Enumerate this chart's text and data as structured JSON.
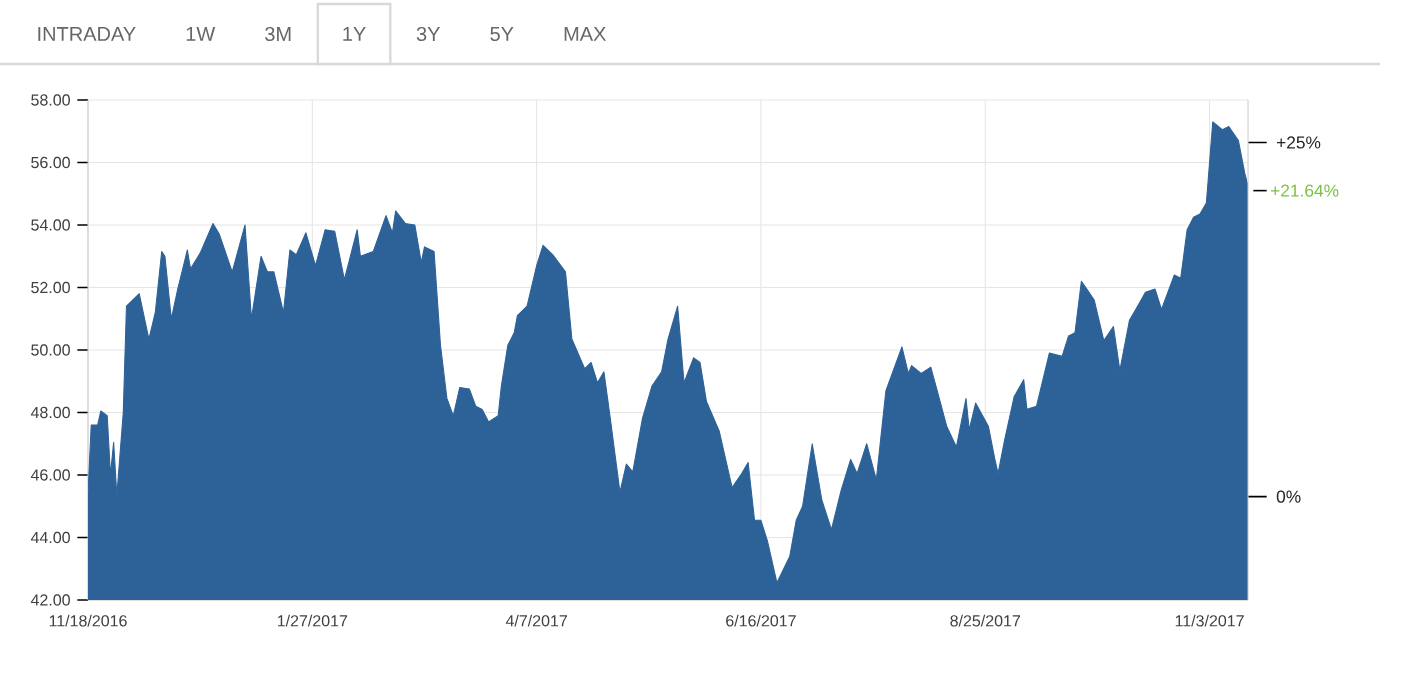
{
  "chart_data": {
    "type": "area",
    "annotations": [
      "INTRADAY",
      "1W",
      "3M",
      "1Y",
      "3Y",
      "5Y",
      "MAX",
      {
        "text": "+21.64%",
        "x": "2017-11-15",
        "y": 55.1
      }
    ],
    "x": [
      "2016-11-18",
      "2016-11-19",
      "2016-11-21",
      "2016-11-22",
      "2016-11-24",
      "2016-11-25",
      "2016-11-26",
      "2016-11-27",
      "2016-11-29",
      "2016-11-30",
      "2016-12-04",
      "2016-12-07",
      "2016-12-09",
      "2016-12-11",
      "2016-12-12",
      "2016-12-14",
      "2016-12-16",
      "2016-12-19",
      "2016-12-20",
      "2016-12-23",
      "2016-12-27",
      "2016-12-29",
      "2017-01-02",
      "2017-01-06",
      "2017-01-08",
      "2017-01-11",
      "2017-01-13",
      "2017-01-15",
      "2017-01-18",
      "2017-01-20",
      "2017-01-22",
      "2017-01-25",
      "2017-01-28",
      "2017-01-31",
      "2017-02-03",
      "2017-02-06",
      "2017-02-10",
      "2017-02-11",
      "2017-02-15",
      "2017-02-19",
      "2017-02-21",
      "2017-02-22",
      "2017-02-25",
      "2017-02-28",
      "2017-03-02",
      "2017-03-03",
      "2017-03-06",
      "2017-03-08",
      "2017-03-10",
      "2017-03-12",
      "2017-03-14",
      "2017-03-17",
      "2017-03-19",
      "2017-03-21",
      "2017-03-23",
      "2017-03-26",
      "2017-03-27",
      "2017-03-29",
      "2017-03-31",
      "2017-04-01",
      "2017-04-04",
      "2017-04-07",
      "2017-04-09",
      "2017-04-12",
      "2017-04-16",
      "2017-04-18",
      "2017-04-22",
      "2017-04-24",
      "2017-04-26",
      "2017-04-28",
      "2017-04-30",
      "2017-05-03",
      "2017-05-05",
      "2017-05-07",
      "2017-05-10",
      "2017-05-13",
      "2017-05-16",
      "2017-05-18",
      "2017-05-21",
      "2017-05-23",
      "2017-05-26",
      "2017-05-28",
      "2017-05-30",
      "2017-06-03",
      "2017-06-07",
      "2017-06-10",
      "2017-06-12",
      "2017-06-14",
      "2017-06-16",
      "2017-06-18",
      "2017-06-21",
      "2017-06-25",
      "2017-06-27",
      "2017-06-29",
      "2017-07-02",
      "2017-07-05",
      "2017-07-08",
      "2017-07-11",
      "2017-07-14",
      "2017-07-16",
      "2017-07-19",
      "2017-07-22",
      "2017-07-25",
      "2017-07-30",
      "2017-08-01",
      "2017-08-02",
      "2017-08-05",
      "2017-08-08",
      "2017-08-10",
      "2017-08-13",
      "2017-08-16",
      "2017-08-19",
      "2017-08-20",
      "2017-08-22",
      "2017-08-26",
      "2017-08-28",
      "2017-08-29",
      "2017-08-31",
      "2017-09-03",
      "2017-09-06",
      "2017-09-07",
      "2017-09-10",
      "2017-09-14",
      "2017-09-18",
      "2017-09-20",
      "2017-09-22",
      "2017-09-24",
      "2017-09-26",
      "2017-09-28",
      "2017-10-01",
      "2017-10-04",
      "2017-10-06",
      "2017-10-09",
      "2017-10-11",
      "2017-10-14",
      "2017-10-17",
      "2017-10-19",
      "2017-10-23",
      "2017-10-25",
      "2017-10-27",
      "2017-10-29",
      "2017-10-31",
      "2017-11-02",
      "2017-11-04",
      "2017-11-07",
      "2017-11-09",
      "2017-11-12",
      "2017-11-14",
      "2017-11-15"
    ],
    "values": [
      45.4,
      47.6,
      47.6,
      48.05,
      47.9,
      46.0,
      47.05,
      45.35,
      48.0,
      51.4,
      51.8,
      50.35,
      51.2,
      53.15,
      53.0,
      51.0,
      51.95,
      53.2,
      52.6,
      53.1,
      54.05,
      53.7,
      52.5,
      54.0,
      51.0,
      53.0,
      52.5,
      52.5,
      51.2,
      53.2,
      53.05,
      53.75,
      52.7,
      53.85,
      53.8,
      52.25,
      53.85,
      53.0,
      53.15,
      54.3,
      53.75,
      54.45,
      54.05,
      54.0,
      52.8,
      53.3,
      53.15,
      50.15,
      48.45,
      47.9,
      48.8,
      48.75,
      48.2,
      48.1,
      47.7,
      47.9,
      48.85,
      50.15,
      50.55,
      51.1,
      51.4,
      52.7,
      53.35,
      53.05,
      52.5,
      50.35,
      49.4,
      49.6,
      48.95,
      49.3,
      47.8,
      45.45,
      46.35,
      46.1,
      47.8,
      48.85,
      49.3,
      50.35,
      51.4,
      48.95,
      49.75,
      49.6,
      48.35,
      47.4,
      45.6,
      46.05,
      46.4,
      44.55,
      44.55,
      43.9,
      42.55,
      43.4,
      44.55,
      45.0,
      47.0,
      45.2,
      44.25,
      45.5,
      46.5,
      46.05,
      47.0,
      45.85,
      48.7,
      50.1,
      49.25,
      49.5,
      49.25,
      49.45,
      48.7,
      47.55,
      46.9,
      48.45,
      47.45,
      48.3,
      47.55,
      46.5,
      46.05,
      47.1,
      48.5,
      49.05,
      48.1,
      48.2,
      49.9,
      49.8,
      50.45,
      50.55,
      52.2,
      51.9,
      51.6,
      50.3,
      50.75,
      49.35,
      50.95,
      51.3,
      51.85,
      51.95,
      51.3,
      52.4,
      52.3,
      53.85,
      54.25,
      54.35,
      54.7,
      57.3,
      57.05,
      57.15,
      56.7,
      55.65,
      55.25
    ],
    "color": "#2d6298",
    "xlim": [
      "2016-11-18",
      "2017-11-15"
    ],
    "xticks": [
      {
        "value": "2016-11-18",
        "label": "11/18/2016"
      },
      {
        "value": "2017-01-27",
        "label": "1/27/2017"
      },
      {
        "value": "2017-04-07",
        "label": "4/7/2017"
      },
      {
        "value": "2017-06-16",
        "label": "6/16/2017"
      },
      {
        "value": "2017-08-25",
        "label": "8/25/2017"
      },
      {
        "value": "2017-11-03",
        "label": "11/3/2017"
      }
    ],
    "ylim": [
      42,
      58
    ],
    "yticks": [
      {
        "value": 42,
        "label": "42.00"
      },
      {
        "value": 44,
        "label": "44.00"
      },
      {
        "value": 46,
        "label": "46.00"
      },
      {
        "value": 48,
        "label": "48.00"
      },
      {
        "value": 50,
        "label": "50.00"
      },
      {
        "value": 52,
        "label": "52.00"
      },
      {
        "value": 54,
        "label": "54.00"
      },
      {
        "value": 56,
        "label": "56.00"
      },
      {
        "value": 58,
        "label": "58.00"
      }
    ],
    "y2lim": [
      -7.3,
      28.0
    ],
    "y2ticks": [
      {
        "value": 0,
        "label": "0%"
      },
      {
        "value": 25,
        "label": "+25%"
      }
    ],
    "grid": true
  }
}
